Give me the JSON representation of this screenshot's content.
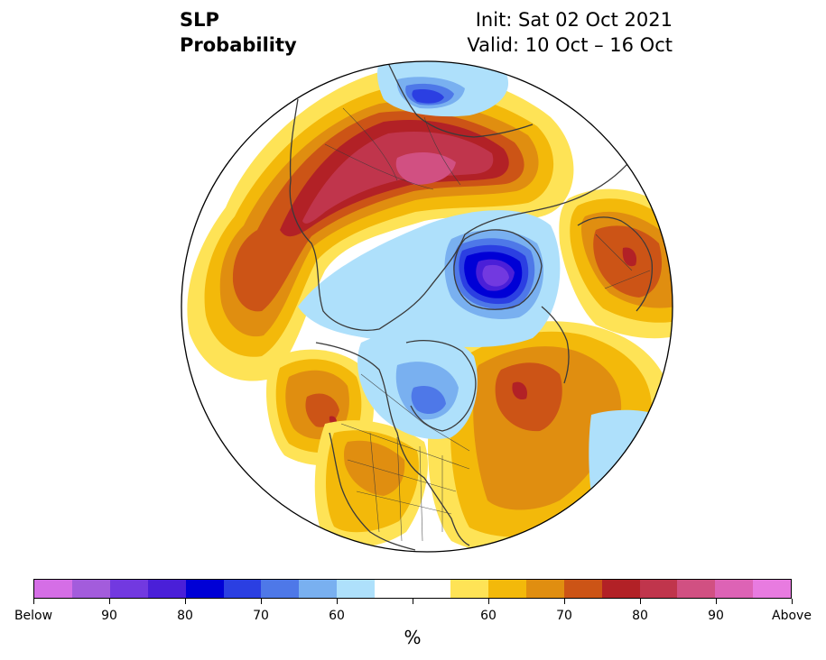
{
  "title": {
    "left_line1": "SLP",
    "left_line2": "Probability",
    "right_line1": "Init: Sat 02 Oct 2021",
    "right_line2": "Valid: 10 Oct – 16 Oct"
  },
  "map": {
    "projection": "north-polar-stereographic",
    "features": [
      "coastlines",
      "country-borders",
      "us-state-borders"
    ],
    "anomalies": [
      {
        "region": "Eurasia / Siberia",
        "category": "above",
        "level": "85-95"
      },
      {
        "region": "North Atlantic / Greenland",
        "category": "below",
        "level": "85-95"
      },
      {
        "region": "Central Canada / Hudson Bay",
        "category": "below",
        "level": "60-70"
      },
      {
        "region": "North Pacific / Gulf of Alaska",
        "category": "above",
        "level": "70-80"
      },
      {
        "region": "Western North Pacific",
        "category": "above",
        "level": "70-75"
      },
      {
        "region": "Europe / Scandinavia",
        "category": "above",
        "level": "70-80"
      },
      {
        "region": "Eastern North America",
        "category": "above",
        "level": "60-70"
      },
      {
        "region": "Northern Europe",
        "category": "below",
        "level": "60-65"
      }
    ]
  },
  "colorbar": {
    "colors": [
      "#d56ee6",
      "#a35cdc",
      "#7239e0",
      "#4a1fd8",
      "#0000d6",
      "#2b3fe2",
      "#4e78e8",
      "#79b0f0",
      "#aee0fb",
      "#ffffff",
      "#ffffff",
      "#fee356",
      "#f3b90a",
      "#e08e10",
      "#cc5416",
      "#b22126",
      "#c0354c",
      "#d15082",
      "#dd63b5",
      "#e87be0"
    ],
    "tick_labels": [
      {
        "text": "Below"
      },
      {
        "text": "90"
      },
      {
        "text": "80"
      },
      {
        "text": "70"
      },
      {
        "text": "60"
      },
      {
        "text": ""
      },
      {
        "text": "60"
      },
      {
        "text": "70"
      },
      {
        "text": "80"
      },
      {
        "text": "90"
      },
      {
        "text": "Above"
      }
    ],
    "unit_label": "%"
  }
}
